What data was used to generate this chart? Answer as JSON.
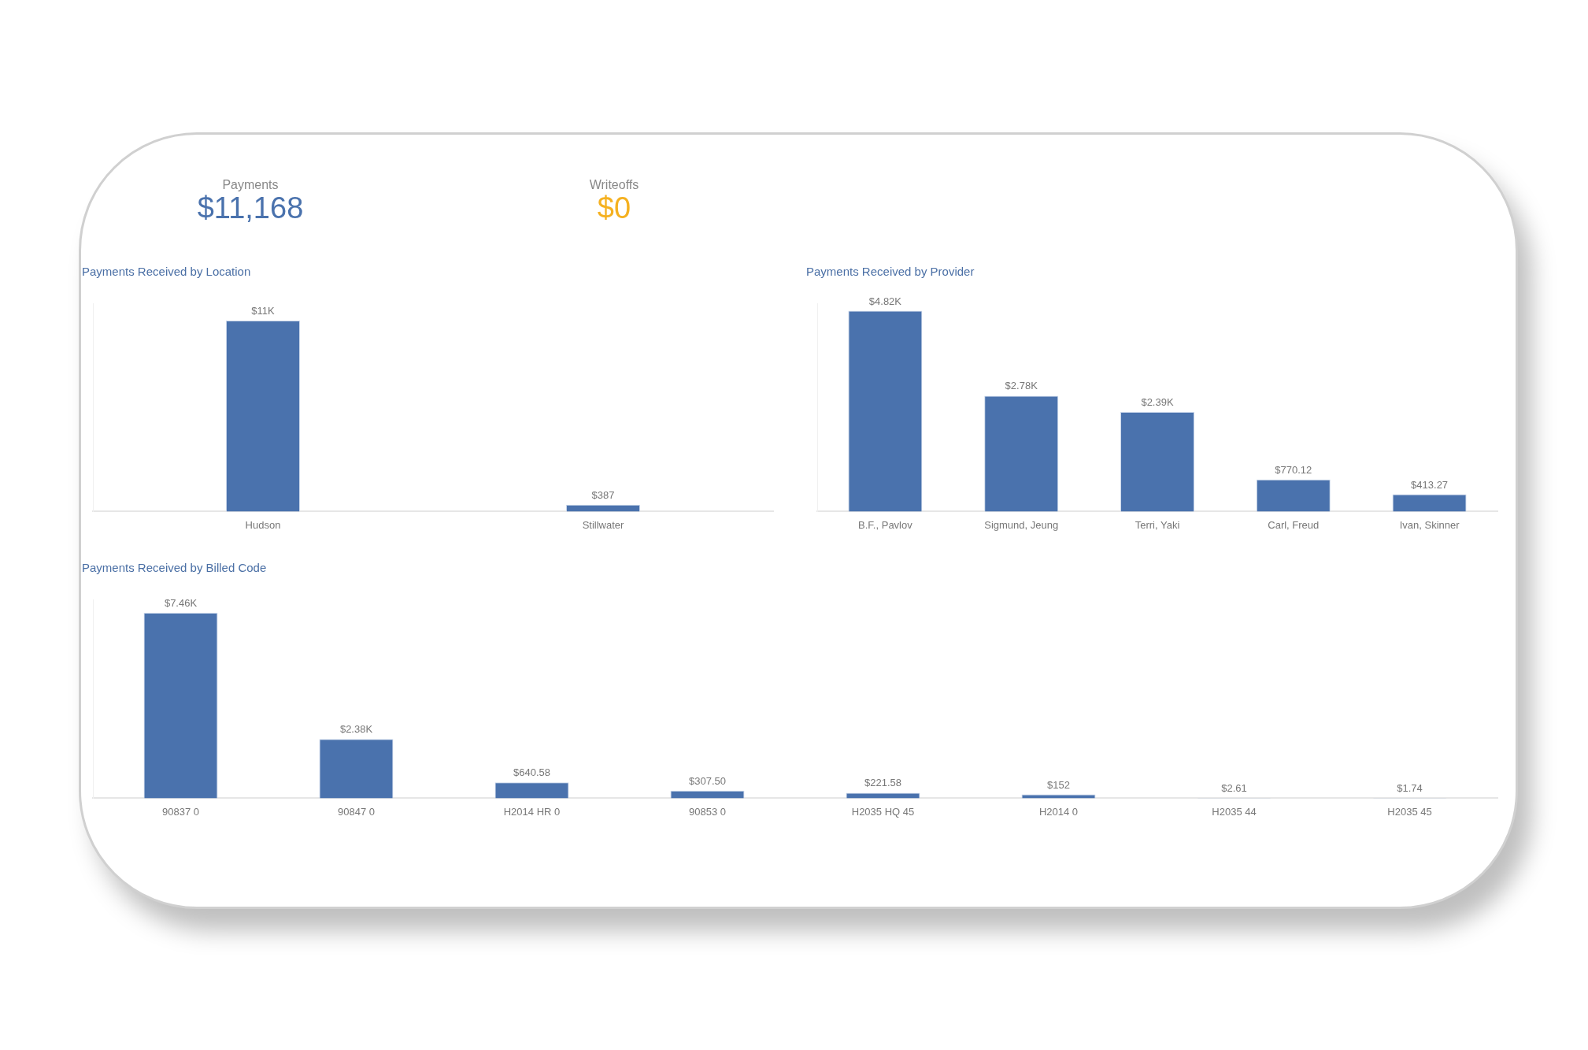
{
  "chart_data": [
    {
      "type": "other",
      "title": "Payments",
      "annotations": [
        "$11,168"
      ],
      "color": "#4a72ad"
    },
    {
      "type": "other",
      "title": "Writeoffs",
      "annotations": [
        "$0"
      ],
      "color": "#f5b120"
    },
    {
      "type": "bar",
      "title": "Payments Received by Location",
      "categories": [
        "Hudson",
        "Stillwater"
      ],
      "values": [
        11000,
        387
      ],
      "value_labels": [
        "$11K",
        "$387"
      ],
      "color": "#4a72ad",
      "tick_labels": "x",
      "legend": false
    },
    {
      "type": "bar",
      "title": "Payments Received by Provider",
      "categories": [
        "B.F., Pavlov",
        "Sigmund, Jeung",
        "Terri, Yaki",
        "Carl, Freud",
        "Ivan, Skinner"
      ],
      "values": [
        4820,
        2780,
        2390,
        770.12,
        413.27
      ],
      "value_labels": [
        "$4.82K",
        "$2.78K",
        "$2.39K",
        "$770.12",
        "$413.27"
      ],
      "color": "#4a72ad",
      "tick_labels": "x",
      "legend": false
    },
    {
      "type": "bar",
      "title": "Payments Received by Billed Code",
      "categories": [
        "90837 0",
        "90847 0",
        "H2014 HR 0",
        "90853 0",
        "H2035 HQ 45",
        "H2014 0",
        "H2035 44",
        "H2035 45"
      ],
      "values": [
        7460,
        2380,
        640.58,
        307.5,
        221.58,
        152,
        2.61,
        1.74
      ],
      "value_labels": [
        "$7.46K",
        "$2.38K",
        "$640.58",
        "$307.50",
        "$221.58",
        "$152",
        "$2.61",
        "$1.74"
      ],
      "color": "#4a72ad",
      "tick_labels": "x",
      "legend": false
    }
  ]
}
